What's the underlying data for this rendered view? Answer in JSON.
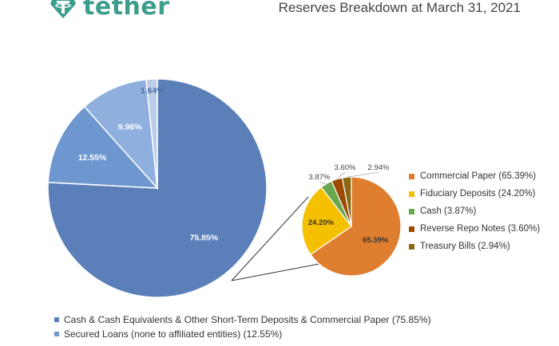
{
  "header": {
    "brand": "tether",
    "title": "Reserves Breakdown at March 31, 2021"
  },
  "colors": {
    "brand": "#3d9d8c"
  },
  "chart_data": [
    {
      "type": "pie",
      "title": "",
      "slices": [
        {
          "label": "Cash & Cash Equivalents & Other Short-Term Deposits & Commercial Paper (75.85%)",
          "value": 75.85,
          "data_label": "75.85%",
          "color": "#5b7fb8"
        },
        {
          "label": "Secured Loans (none to affiliated entities) (12.55%)",
          "value": 12.55,
          "data_label": "12.55%",
          "color": "#6f97cf"
        },
        {
          "label": "",
          "value": 9.96,
          "data_label": "9.96%",
          "color": "#8fafde"
        },
        {
          "label": "",
          "value": 1.64,
          "data_label": "1.64%",
          "color": "#bccdea"
        }
      ],
      "legend": "bottom"
    },
    {
      "type": "pie",
      "title": "",
      "slices": [
        {
          "label": "Commercial Paper (65.39%)",
          "value": 65.39,
          "data_label": "65.39%",
          "color": "#e07e30"
        },
        {
          "label": "Fiduciary Deposits (24.20%)",
          "value": 24.2,
          "data_label": "24.20%",
          "color": "#f5c000"
        },
        {
          "label": "Cash (3.87%)",
          "value": 3.87,
          "data_label": "3.87%",
          "color": "#6aa84f"
        },
        {
          "label": "Reverse Repo Notes (3.60%)",
          "value": 3.6,
          "data_label": "3.60%",
          "color": "#9c4a00"
        },
        {
          "label": "Treasury Bills (2.94%)",
          "value": 2.94,
          "data_label": "2.94%",
          "color": "#8b6914"
        }
      ],
      "legend": "right"
    }
  ]
}
